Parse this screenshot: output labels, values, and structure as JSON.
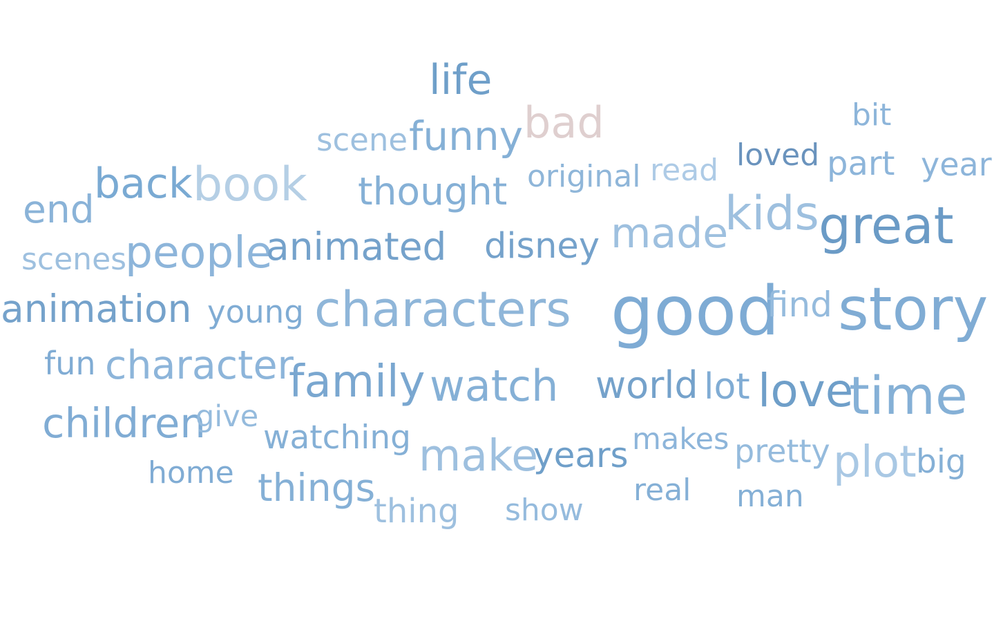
{
  "words": [
    {
      "text": "life",
      "color": "#6f9fc9"
    },
    {
      "text": "bad",
      "color": "#dfcfcf"
    },
    {
      "text": "bit",
      "color": "#8db5da"
    },
    {
      "text": "scene",
      "color": "#9ec0df"
    },
    {
      "text": "funny",
      "color": "#85b0d6"
    },
    {
      "text": "loved",
      "color": "#6a93bd"
    },
    {
      "text": "original",
      "color": "#8fb6d9"
    },
    {
      "text": "read",
      "color": "#aecbe6"
    },
    {
      "text": "part",
      "color": "#8db5da"
    },
    {
      "text": "year",
      "color": "#8db5da"
    },
    {
      "text": "back",
      "color": "#7aaad3"
    },
    {
      "text": "book",
      "color": "#b5cfe5"
    },
    {
      "text": "thought",
      "color": "#85b0d6"
    },
    {
      "text": "end",
      "color": "#8ab3d8"
    },
    {
      "text": "kids",
      "color": "#9ec0df"
    },
    {
      "text": "great",
      "color": "#6b9bc6"
    },
    {
      "text": "made",
      "color": "#9ec0df"
    },
    {
      "text": "disney",
      "color": "#75a2cb"
    },
    {
      "text": "scenes",
      "color": "#9ec0df"
    },
    {
      "text": "people",
      "color": "#8db5da"
    },
    {
      "text": "animated",
      "color": "#75a2cb"
    },
    {
      "text": "animation",
      "color": "#75a2cb"
    },
    {
      "text": "young",
      "color": "#80acd4"
    },
    {
      "text": "characters",
      "color": "#8fb6d9"
    },
    {
      "text": "good",
      "color": "#7eabd4"
    },
    {
      "text": "find",
      "color": "#95bbdd"
    },
    {
      "text": "story",
      "color": "#80acd4"
    },
    {
      "text": "fun",
      "color": "#80acd4"
    },
    {
      "text": "character",
      "color": "#8db5da"
    },
    {
      "text": "family",
      "color": "#7aa7d0"
    },
    {
      "text": "watch",
      "color": "#85b0d6"
    },
    {
      "text": "world",
      "color": "#75a2cb"
    },
    {
      "text": "lot",
      "color": "#80acd4"
    },
    {
      "text": "love",
      "color": "#6f9fc9"
    },
    {
      "text": "time",
      "color": "#85b0d6"
    },
    {
      "text": "children",
      "color": "#80acd4"
    },
    {
      "text": "give",
      "color": "#95bbdd"
    },
    {
      "text": "watching",
      "color": "#85b0d6"
    },
    {
      "text": "make",
      "color": "#9ec0df"
    },
    {
      "text": "years",
      "color": "#6f9fc9"
    },
    {
      "text": "makes",
      "color": "#8db5da"
    },
    {
      "text": "pretty",
      "color": "#95bbdd"
    },
    {
      "text": "plot",
      "color": "#a9c8e4"
    },
    {
      "text": "big",
      "color": "#85b0d6"
    },
    {
      "text": "home",
      "color": "#80acd4"
    },
    {
      "text": "things",
      "color": "#85b0d6"
    },
    {
      "text": "thing",
      "color": "#9ec0df"
    },
    {
      "text": "show",
      "color": "#95bbdd"
    },
    {
      "text": "real",
      "color": "#85b0d6"
    },
    {
      "text": "man",
      "color": "#85b0d6"
    }
  ]
}
